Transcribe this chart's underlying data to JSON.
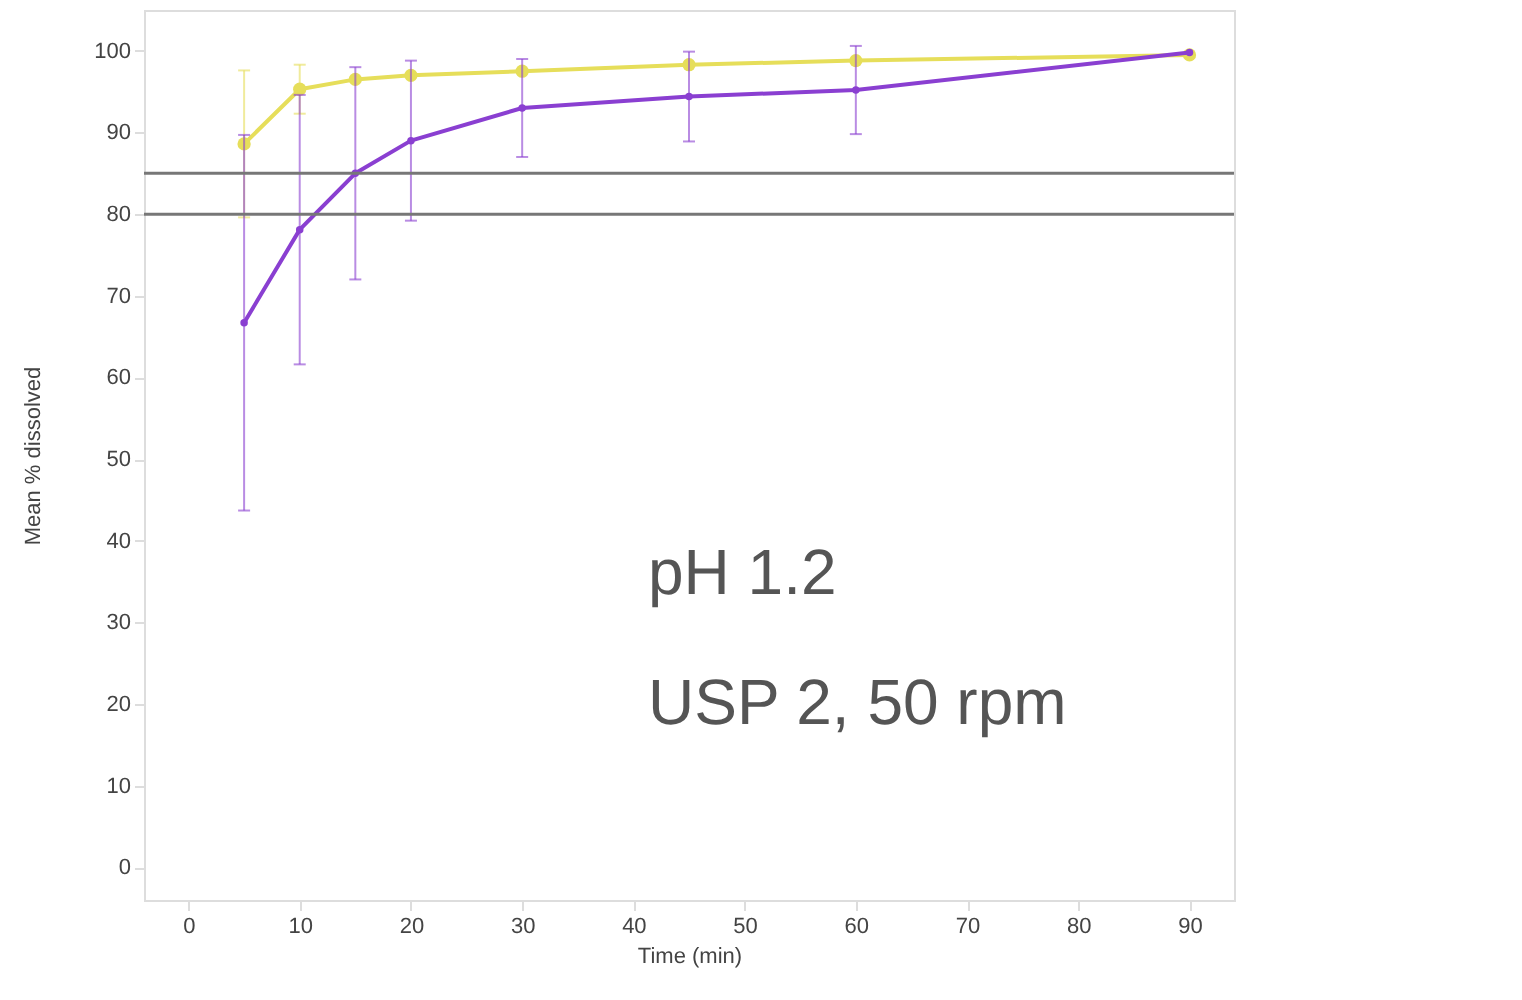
{
  "chart_data": {
    "type": "line",
    "xlabel": "Time (min)",
    "ylabel": "Mean % dissolved",
    "x": [
      5,
      10,
      15,
      20,
      30,
      45,
      60,
      90
    ],
    "series": [
      {
        "color": "#e6de5a",
        "values": [
          88.6,
          95.3,
          96.5,
          97,
          97.5,
          98.3,
          98.8,
          99.5
        ],
        "errors": [
          9,
          3,
          null,
          null,
          null,
          null,
          null,
          null
        ]
      },
      {
        "color": "#8a3fd1",
        "values": [
          66.7,
          78.1,
          85,
          89,
          93,
          94.4,
          95.2,
          99.8
        ],
        "errors": [
          23,
          16.5,
          13,
          9.8,
          6,
          5.5,
          5.4,
          null
        ]
      }
    ],
    "xlim": [
      -4,
      94
    ],
    "xticks": [
      0,
      10,
      20,
      30,
      40,
      50,
      60,
      70,
      80,
      90
    ],
    "ylim": [
      -4,
      105
    ],
    "yticks": [
      0,
      10,
      20,
      30,
      40,
      50,
      60,
      70,
      80,
      90,
      100
    ],
    "ref_lines": [
      {
        "axis": "y",
        "value": 85,
        "color": "#777777"
      },
      {
        "axis": "y",
        "value": 80,
        "color": "#777777"
      }
    ],
    "annotations": [
      "pH 1.2",
      "USP 2, 50 rpm"
    ],
    "marker": "circle",
    "grid": false
  }
}
